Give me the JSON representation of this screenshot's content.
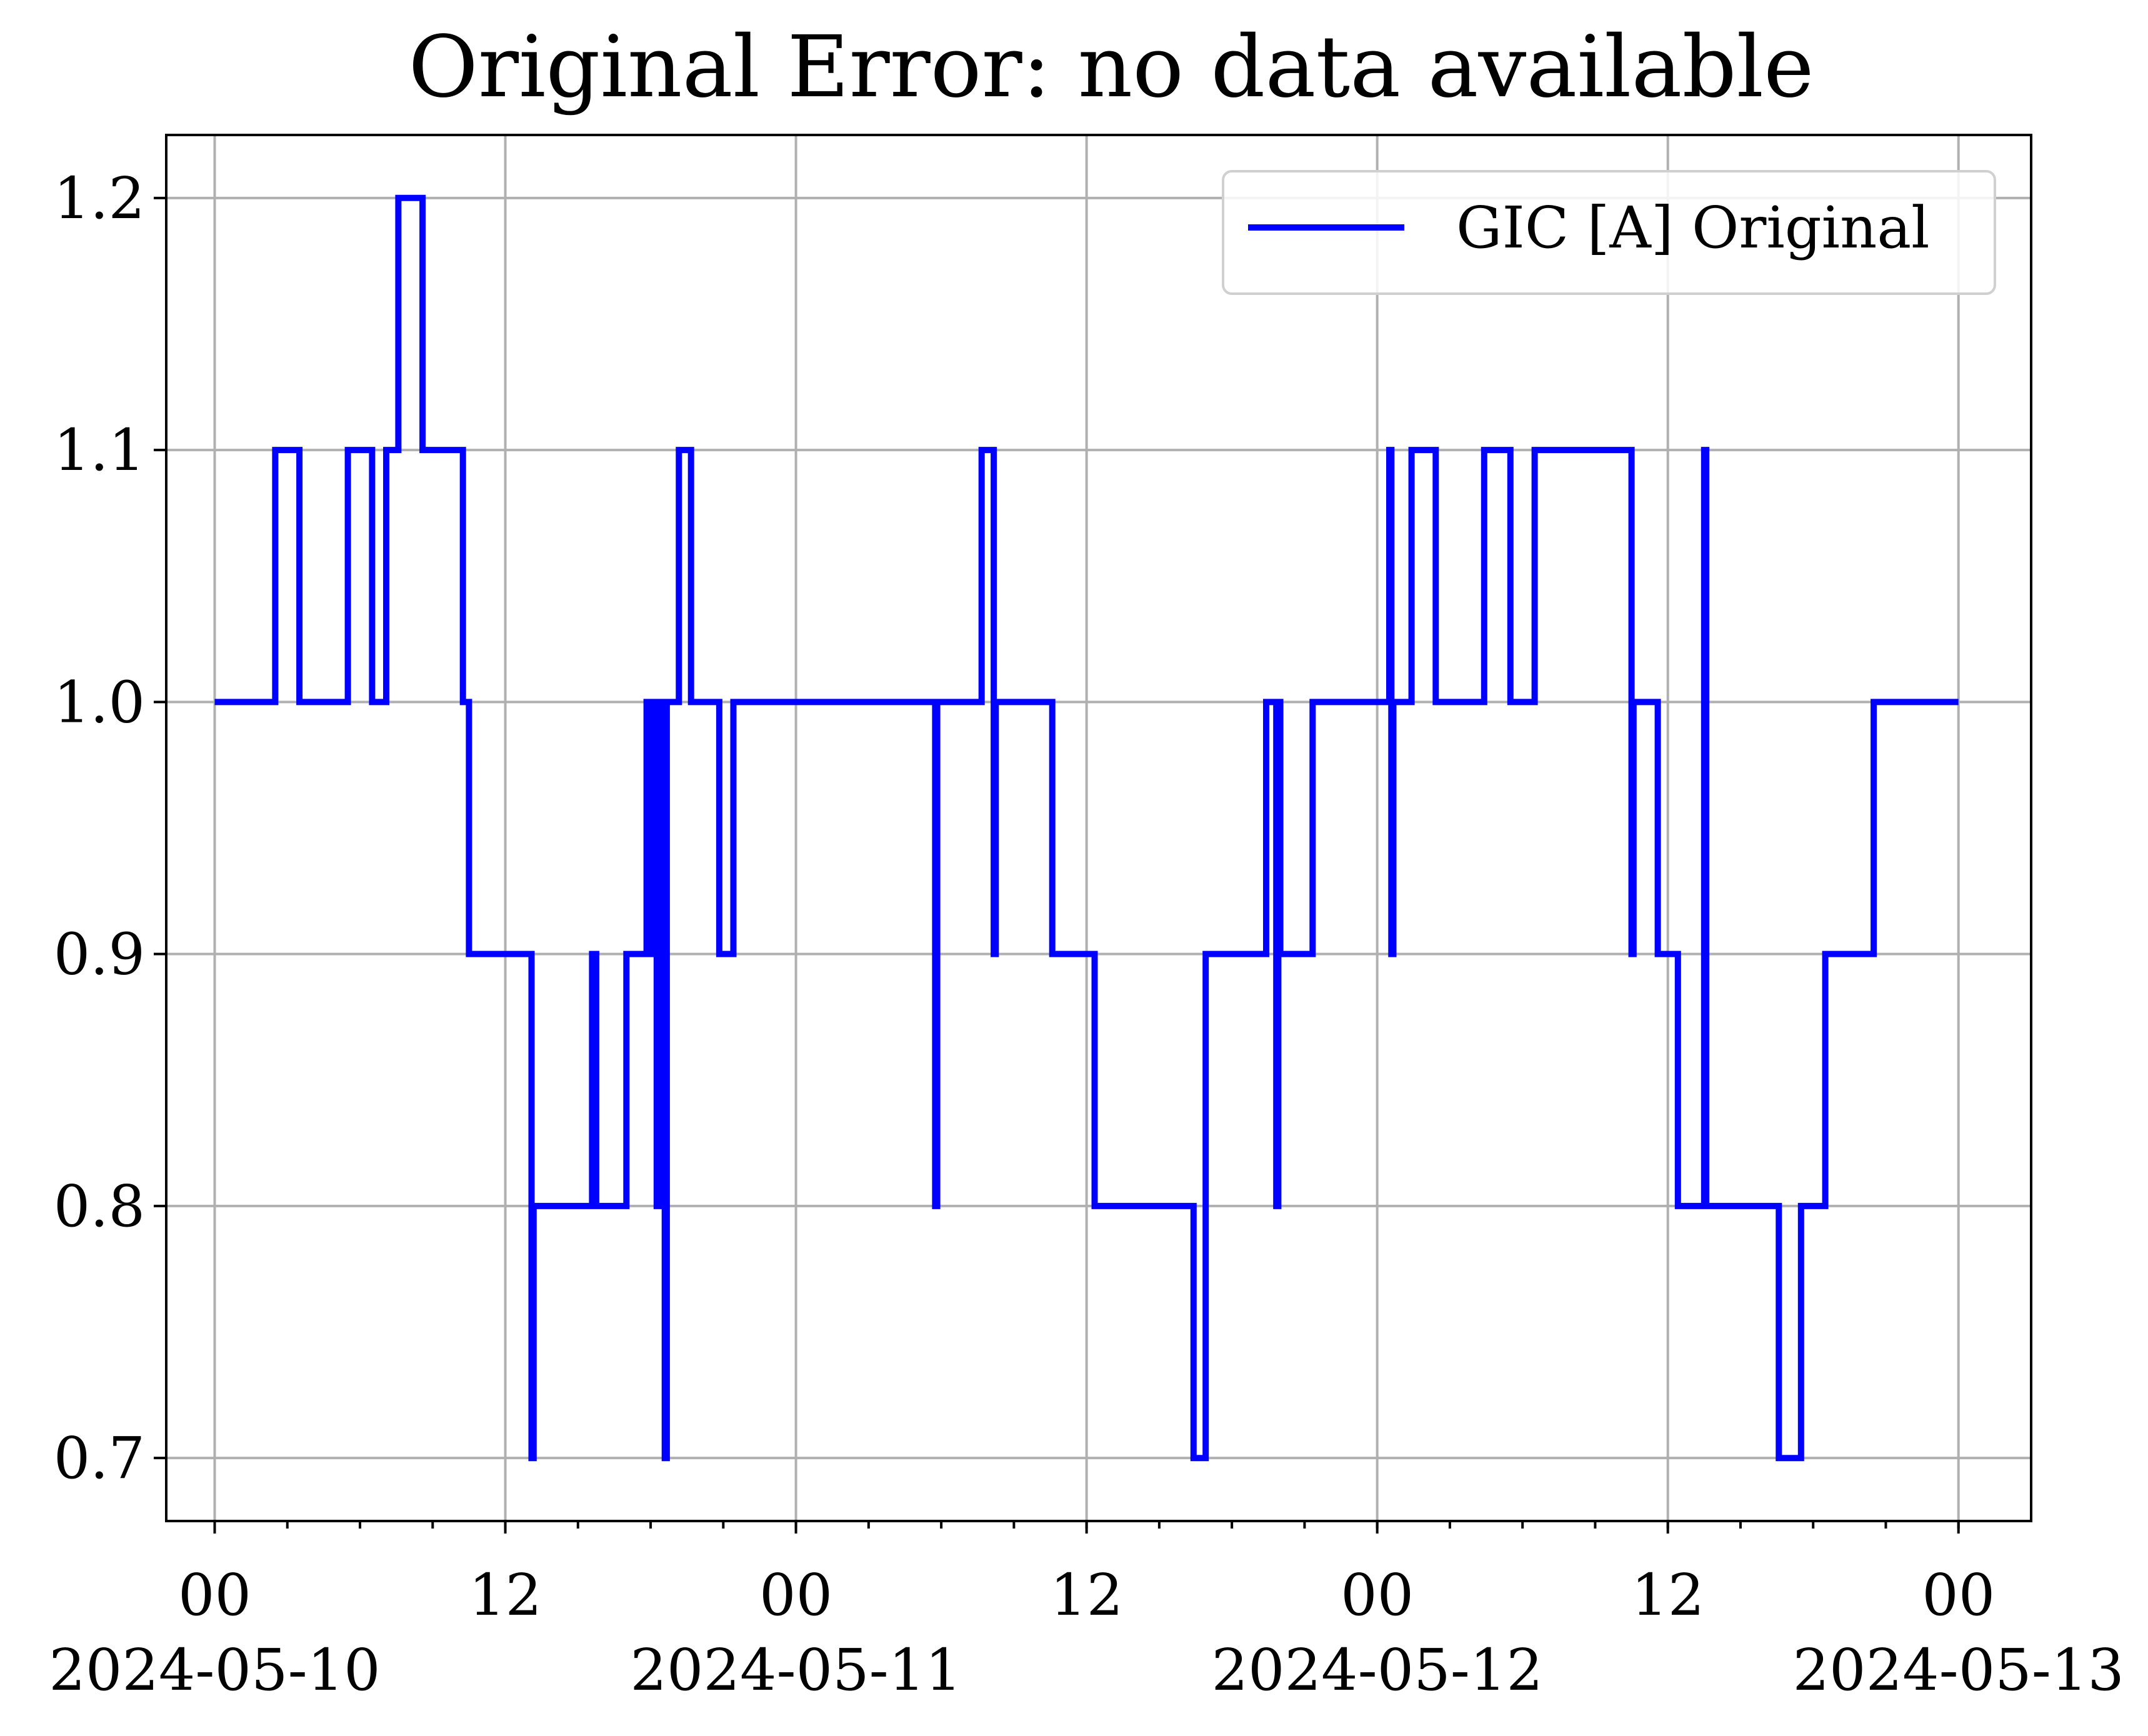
{
  "chart_data": {
    "type": "line",
    "title": "Original Error: no data available",
    "xlabel": "",
    "ylabel": "",
    "x_axis": {
      "type": "datetime",
      "range": [
        "2024-05-09T22:00",
        "2024-05-13T03:00"
      ],
      "ticks": [
        {
          "value": "2024-05-10T00:00",
          "label": "00",
          "sublabel": "2024-05-10"
        },
        {
          "value": "2024-05-10T12:00",
          "label": "12",
          "sublabel": ""
        },
        {
          "value": "2024-05-11T00:00",
          "label": "00",
          "sublabel": "2024-05-11"
        },
        {
          "value": "2024-05-11T12:00",
          "label": "12",
          "sublabel": ""
        },
        {
          "value": "2024-05-12T00:00",
          "label": "00",
          "sublabel": "2024-05-12"
        },
        {
          "value": "2024-05-12T12:00",
          "label": "12",
          "sublabel": ""
        },
        {
          "value": "2024-05-13T00:00",
          "label": "00",
          "sublabel": "2024-05-13"
        }
      ],
      "minor_tick_hours": 3
    },
    "y_axis": {
      "range": [
        0.675,
        1.225
      ],
      "ticks": [
        0.7,
        0.8,
        0.9,
        1.0,
        1.1,
        1.2
      ],
      "tick_labels": [
        "0.7",
        "0.8",
        "0.9",
        "1.0",
        "1.1",
        "1.2"
      ]
    },
    "grid": true,
    "legend": {
      "position": "top-right",
      "entries": [
        {
          "label": "GIC [A] Original",
          "color": "#0000ff"
        }
      ]
    },
    "series": [
      {
        "name": "GIC [A] Original",
        "color": "#0000ff",
        "step": true,
        "points": [
          [
            "2024-05-10T00:00",
            1.0
          ],
          [
            "2024-05-10T02:30",
            1.1
          ],
          [
            "2024-05-10T03:30",
            1.0
          ],
          [
            "2024-05-10T05:30",
            1.1
          ],
          [
            "2024-05-10T06:30",
            1.0
          ],
          [
            "2024-05-10T07:05",
            1.1
          ],
          [
            "2024-05-10T07:35",
            1.2
          ],
          [
            "2024-05-10T08:35",
            1.1
          ],
          [
            "2024-05-10T10:15",
            1.0
          ],
          [
            "2024-05-10T10:30",
            0.9
          ],
          [
            "2024-05-10T13:05",
            0.7
          ],
          [
            "2024-05-10T13:10",
            0.8
          ],
          [
            "2024-05-10T15:35",
            0.9
          ],
          [
            "2024-05-10T15:45",
            0.8
          ],
          [
            "2024-05-10T17:00",
            0.9
          ],
          [
            "2024-05-10T17:50",
            1.0
          ],
          [
            "2024-05-10T18:05",
            0.9
          ],
          [
            "2024-05-10T18:10",
            1.0
          ],
          [
            "2024-05-10T18:15",
            0.8
          ],
          [
            "2024-05-10T18:20",
            1.0
          ],
          [
            "2024-05-10T18:25",
            0.8
          ],
          [
            "2024-05-10T18:30",
            1.0
          ],
          [
            "2024-05-10T18:35",
            0.7
          ],
          [
            "2024-05-10T18:40",
            1.0
          ],
          [
            "2024-05-10T18:45",
            1.0
          ],
          [
            "2024-05-10T19:10",
            1.1
          ],
          [
            "2024-05-10T19:40",
            1.0
          ],
          [
            "2024-05-10T20:50",
            0.9
          ],
          [
            "2024-05-10T21:25",
            1.0
          ],
          [
            "2024-05-11T05:45",
            0.8
          ],
          [
            "2024-05-11T05:50",
            1.0
          ],
          [
            "2024-05-11T07:40",
            1.1
          ],
          [
            "2024-05-11T08:10",
            0.9
          ],
          [
            "2024-05-11T08:15",
            1.0
          ],
          [
            "2024-05-11T10:35",
            0.9
          ],
          [
            "2024-05-11T12:20",
            0.8
          ],
          [
            "2024-05-11T16:25",
            0.7
          ],
          [
            "2024-05-11T16:55",
            0.9
          ],
          [
            "2024-05-11T19:25",
            1.0
          ],
          [
            "2024-05-11T19:50",
            0.8
          ],
          [
            "2024-05-11T19:55",
            1.0
          ],
          [
            "2024-05-11T20:00",
            0.9
          ],
          [
            "2024-05-11T20:15",
            0.9
          ],
          [
            "2024-05-11T21:20",
            1.0
          ],
          [
            "2024-05-12T00:30",
            1.1
          ],
          [
            "2024-05-12T00:35",
            0.9
          ],
          [
            "2024-05-12T00:40",
            1.0
          ],
          [
            "2024-05-12T01:25",
            1.1
          ],
          [
            "2024-05-12T02:25",
            1.0
          ],
          [
            "2024-05-12T04:25",
            1.1
          ],
          [
            "2024-05-12T05:30",
            1.0
          ],
          [
            "2024-05-12T06:30",
            1.1
          ],
          [
            "2024-05-12T10:30",
            0.9
          ],
          [
            "2024-05-12T10:35",
            1.0
          ],
          [
            "2024-05-12T11:35",
            0.9
          ],
          [
            "2024-05-12T12:25",
            0.8
          ],
          [
            "2024-05-12T13:30",
            1.1
          ],
          [
            "2024-05-12T13:35",
            0.8
          ],
          [
            "2024-05-12T16:35",
            0.7
          ],
          [
            "2024-05-12T17:30",
            0.8
          ],
          [
            "2024-05-12T18:30",
            0.9
          ],
          [
            "2024-05-12T20:30",
            1.0
          ],
          [
            "2024-05-13T00:00",
            1.0
          ]
        ]
      }
    ]
  }
}
